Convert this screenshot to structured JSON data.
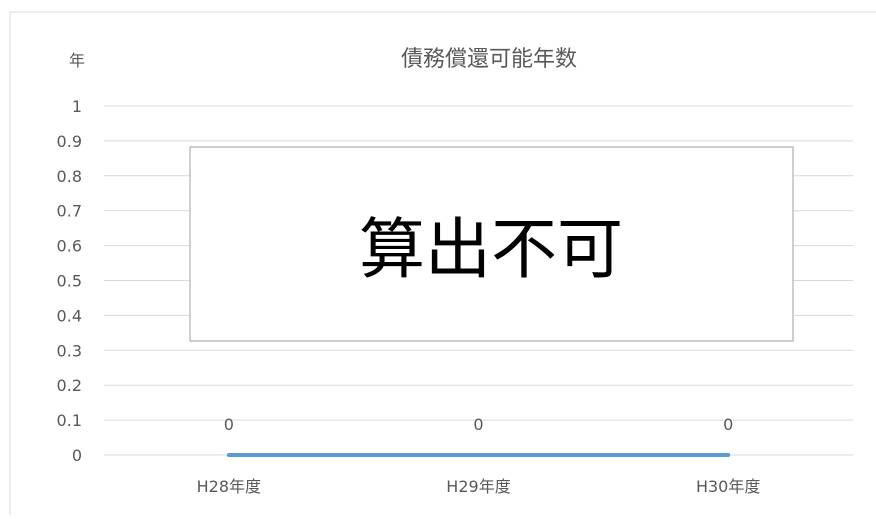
{
  "chart_data": {
    "type": "line",
    "title": "債務償還可能年数",
    "ylabel": "年",
    "xlabel": "",
    "categories": [
      "H28年度",
      "H29年度",
      "H30年度"
    ],
    "series": [
      {
        "values": [
          0,
          0,
          0
        ],
        "color": "#5b9bd5"
      }
    ],
    "data_labels": [
      "0",
      "0",
      "0"
    ],
    "ylim": [
      0,
      1
    ],
    "yticks": [
      0,
      0.1,
      0.2,
      0.3,
      0.4,
      0.5,
      0.6,
      0.7,
      0.8,
      0.9,
      1
    ],
    "ytick_labels": [
      "0",
      "0.1",
      "0.2",
      "0.3",
      "0.4",
      "0.5",
      "0.6",
      "0.7",
      "0.8",
      "0.9",
      "1"
    ],
    "grid": true,
    "legend": "none",
    "annotation": {
      "text": "算出不可"
    },
    "colors": {
      "gridline": "#d9d9d9",
      "frame": "#d9d9d9",
      "annotation_border": "#bfbfbf",
      "text": "#595959"
    }
  }
}
